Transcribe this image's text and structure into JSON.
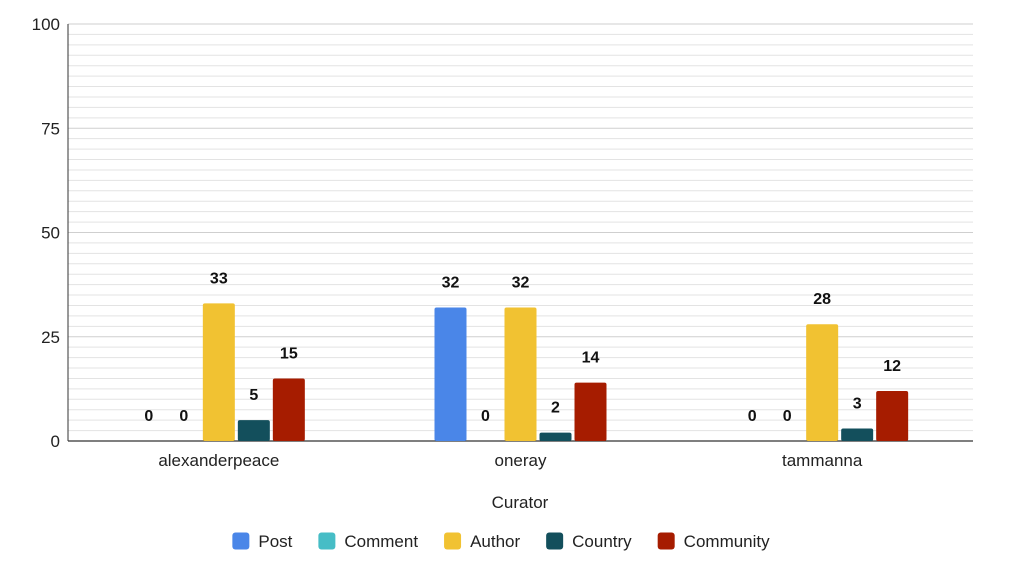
{
  "chart_data": {
    "type": "bar",
    "xlabel": "Curator",
    "ylabel": "",
    "ylim": [
      0,
      100
    ],
    "yticks": [
      0,
      25,
      50,
      75,
      100
    ],
    "minor_grid_step": 2.5,
    "grid": true,
    "legend_position": "bottom",
    "categories": [
      "alexanderpeace",
      "oneray",
      "tammanna"
    ],
    "series": [
      {
        "name": "Post",
        "color": "#4A86E8",
        "values": [
          0,
          32,
          0
        ]
      },
      {
        "name": "Comment",
        "color": "#46BDC6",
        "values": [
          0,
          0,
          0
        ]
      },
      {
        "name": "Author",
        "color": "#F1C232",
        "values": [
          33,
          32,
          28
        ]
      },
      {
        "name": "Country",
        "color": "#134F5C",
        "values": [
          5,
          2,
          3
        ]
      },
      {
        "name": "Community",
        "color": "#A61C00",
        "values": [
          15,
          14,
          12
        ]
      }
    ]
  }
}
